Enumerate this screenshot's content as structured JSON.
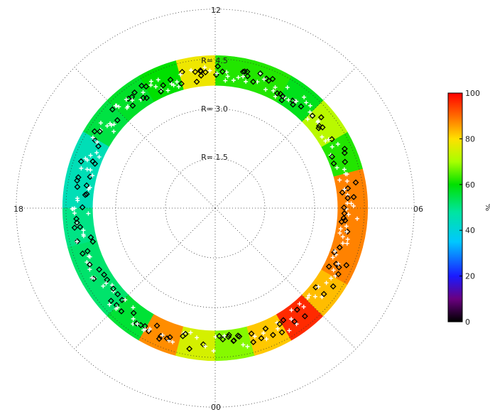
{
  "chart_data": {
    "type": "polar-dial",
    "title": "",
    "mlt_labels": {
      "top": "12",
      "bottom": "00",
      "left": "18",
      "right": "06"
    },
    "radius_labels": [
      "R= 1.5",
      "R= 3.0",
      "R= 4.5"
    ],
    "radius_values": [
      1.5,
      3.0,
      4.5
    ],
    "grid_radial_spokes_deg": [
      0,
      45,
      90,
      135,
      180,
      225,
      270,
      315
    ],
    "ring": {
      "inner_R": 3.7,
      "outer_R": 4.6
    },
    "sector_width_hours": 1,
    "sectors": [
      {
        "mlt": 11.5,
        "value": 62
      },
      {
        "mlt": 12.5,
        "value": 78
      },
      {
        "mlt": 13.5,
        "value": 60
      },
      {
        "mlt": 14.5,
        "value": 57
      },
      {
        "mlt": 15.5,
        "value": 55
      },
      {
        "mlt": 16.5,
        "value": 45
      },
      {
        "mlt": 17.5,
        "value": 45
      },
      {
        "mlt": 18.5,
        "value": 50
      },
      {
        "mlt": 19.5,
        "value": 52
      },
      {
        "mlt": 20.5,
        "value": 52
      },
      {
        "mlt": 21.5,
        "value": 56
      },
      {
        "mlt": 22.5,
        "value": 87
      },
      {
        "mlt": 23.5,
        "value": 75
      },
      {
        "mlt": 0.5,
        "value": 68
      },
      {
        "mlt": 1.5,
        "value": 82
      },
      {
        "mlt": 2.5,
        "value": 96
      },
      {
        "mlt": 3.5,
        "value": 83
      },
      {
        "mlt": 4.5,
        "value": 88
      },
      {
        "mlt": 5.5,
        "value": 88
      },
      {
        "mlt": 6.5,
        "value": 88
      },
      {
        "mlt": 7.5,
        "value": 62
      },
      {
        "mlt": 8.5,
        "value": 72
      },
      {
        "mlt": 9.5,
        "value": 58
      },
      {
        "mlt": 10.5,
        "value": 62
      }
    ],
    "colorbar": {
      "ticks": [
        "0",
        "20",
        "40",
        "60",
        "80",
        "100"
      ],
      "range": [
        0,
        100
      ],
      "label": "%"
    },
    "markers": {
      "white": "plus",
      "black": "diamond"
    }
  }
}
